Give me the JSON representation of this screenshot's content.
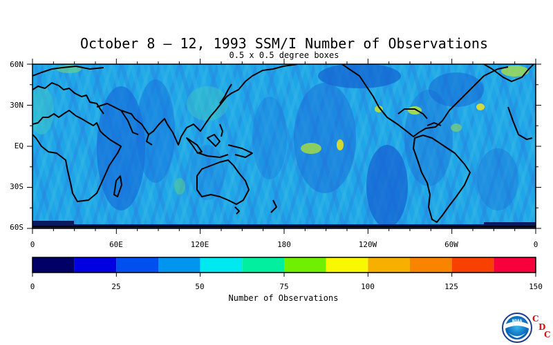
{
  "title": "October 8 – 12, 1993 SSM/I Number of Observations",
  "subtitle": "0.5 x 0.5 degree boxes",
  "lat_labels": [
    "60N",
    "30N",
    "EQ",
    "30S",
    "60S"
  ],
  "lon_labels": [
    "0",
    "60E",
    "120E",
    "180",
    "120W",
    "60W",
    "0"
  ],
  "colorbar": {
    "title": "Number of Observations",
    "ticks": [
      "0",
      "25",
      "50",
      "75",
      "100",
      "125",
      "150"
    ],
    "colors": [
      "#000066",
      "#0000e0",
      "#0050f0",
      "#0096f0",
      "#00e8f0",
      "#00f0a0",
      "#70f000",
      "#f8f800",
      "#f8b000",
      "#f88400",
      "#f84000",
      "#f8003c"
    ]
  },
  "logo": {
    "letters": [
      "C",
      "D",
      "C"
    ],
    "emblem_text": "NOAA"
  }
}
